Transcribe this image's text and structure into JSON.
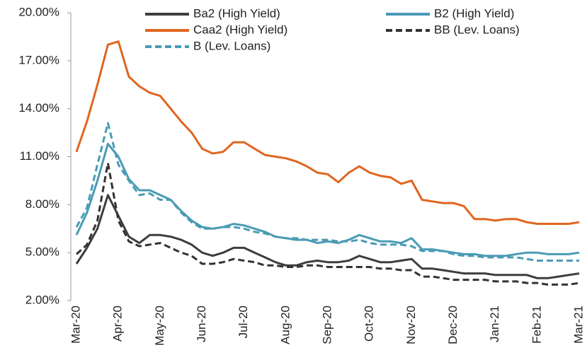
{
  "chart_data": {
    "type": "line",
    "categories": [
      "Mar-20",
      null,
      null,
      null,
      "Apr-20",
      null,
      null,
      null,
      "May-20",
      null,
      null,
      null,
      "Jun-20",
      null,
      null,
      null,
      "Jul-20",
      null,
      null,
      null,
      "Aug-20",
      null,
      null,
      null,
      "Sep-20",
      null,
      null,
      null,
      "Oct-20",
      null,
      null,
      null,
      "Nov-20",
      null,
      null,
      null,
      "Dec-20",
      null,
      null,
      null,
      "Jan-21",
      null,
      null,
      null,
      "Feb-21",
      null,
      null,
      null,
      "Mar-21"
    ],
    "series": [
      {
        "name": "Ba2 (High Yield)",
        "color": "#3d3d3d",
        "dash": false,
        "values": [
          4.3,
          5.3,
          6.5,
          8.6,
          7.3,
          6.0,
          5.6,
          6.1,
          6.1,
          6.0,
          5.8,
          5.5,
          5.0,
          4.8,
          5.0,
          5.3,
          5.3,
          5.0,
          4.7,
          4.4,
          4.2,
          4.2,
          4.4,
          4.5,
          4.4,
          4.4,
          4.5,
          4.8,
          4.6,
          4.4,
          4.4,
          4.5,
          4.6,
          4.0,
          4.0,
          3.9,
          3.8,
          3.7,
          3.7,
          3.7,
          3.6,
          3.6,
          3.6,
          3.6,
          3.4,
          3.4,
          3.5,
          3.6,
          3.7
        ]
      },
      {
        "name": "B2 (High Yield)",
        "color": "#4a9bb5",
        "dash": false,
        "values": [
          6.1,
          7.5,
          9.5,
          11.8,
          11.0,
          9.6,
          8.9,
          8.9,
          8.6,
          8.3,
          7.6,
          7.0,
          6.6,
          6.5,
          6.6,
          6.8,
          6.7,
          6.5,
          6.3,
          6.0,
          5.9,
          5.8,
          5.8,
          5.6,
          5.7,
          5.6,
          5.8,
          6.1,
          5.9,
          5.7,
          5.7,
          5.6,
          5.9,
          5.2,
          5.2,
          5.1,
          5.0,
          4.9,
          4.9,
          4.8,
          4.8,
          4.8,
          4.9,
          5.0,
          5.0,
          4.9,
          4.9,
          4.9,
          5.0
        ]
      },
      {
        "name": "Caa2 (High Yield)",
        "color": "#e0651f",
        "dash": false,
        "values": [
          11.3,
          13.2,
          15.5,
          18.0,
          18.2,
          16.0,
          15.4,
          15.0,
          14.8,
          14.0,
          13.2,
          12.5,
          11.5,
          11.2,
          11.3,
          11.9,
          11.9,
          11.5,
          11.1,
          11.0,
          10.9,
          10.7,
          10.4,
          10.0,
          9.9,
          9.4,
          10.0,
          10.4,
          10.0,
          9.8,
          9.7,
          9.3,
          9.5,
          8.3,
          8.2,
          8.1,
          8.1,
          7.9,
          7.1,
          7.1,
          7.0,
          7.1,
          7.1,
          6.9,
          6.8,
          6.8,
          6.8,
          6.8,
          6.9
        ]
      },
      {
        "name": "BB (Lev. Loans)",
        "color": "#333333",
        "dash": true,
        "values": [
          4.9,
          5.5,
          7.0,
          10.6,
          7.0,
          5.7,
          5.4,
          5.5,
          5.6,
          5.3,
          5.0,
          4.8,
          4.3,
          4.3,
          4.4,
          4.6,
          4.5,
          4.4,
          4.2,
          4.2,
          4.1,
          4.1,
          4.2,
          4.2,
          4.1,
          4.1,
          4.1,
          4.1,
          4.1,
          4.0,
          4.0,
          3.9,
          3.9,
          3.5,
          3.5,
          3.4,
          3.3,
          3.3,
          3.3,
          3.3,
          3.2,
          3.2,
          3.2,
          3.1,
          3.1,
          3.0,
          3.0,
          3.0,
          3.1
        ]
      },
      {
        "name": "B (Lev. Loans)",
        "color": "#4a9bb5",
        "dash": true,
        "values": [
          6.6,
          7.8,
          10.5,
          13.1,
          10.5,
          9.5,
          8.6,
          8.7,
          8.3,
          8.3,
          7.5,
          6.9,
          6.5,
          6.5,
          6.6,
          6.6,
          6.5,
          6.3,
          6.2,
          6.0,
          5.9,
          5.9,
          5.8,
          5.8,
          5.8,
          5.7,
          5.7,
          5.8,
          5.6,
          5.5,
          5.5,
          5.5,
          5.4,
          5.1,
          5.1,
          5.1,
          4.9,
          4.8,
          4.8,
          4.7,
          4.7,
          4.7,
          4.7,
          4.6,
          4.5,
          4.5,
          4.5,
          4.5,
          4.5
        ]
      }
    ],
    "ylim": [
      2,
      20
    ],
    "yticks": [
      {
        "value": 2,
        "label": "2.00%"
      },
      {
        "value": 5,
        "label": "5.00%"
      },
      {
        "value": 8,
        "label": "8.00%"
      },
      {
        "value": 11,
        "label": "11.00%"
      },
      {
        "value": 14,
        "label": "14.00%"
      },
      {
        "value": 17,
        "label": "17.00%"
      },
      {
        "value": 20,
        "label": "20.00%"
      }
    ],
    "grid": false
  }
}
